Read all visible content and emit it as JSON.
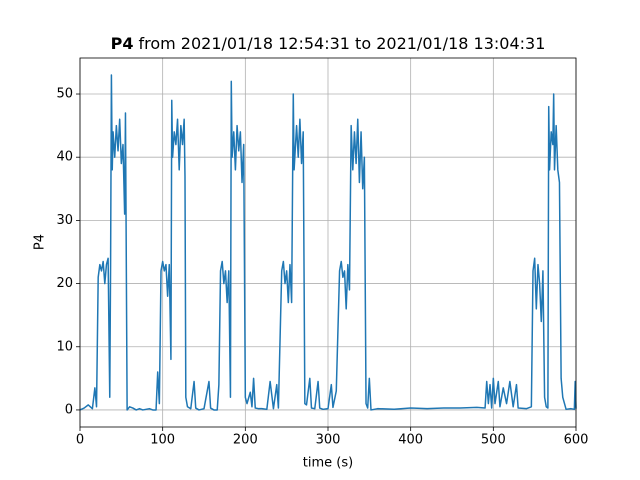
{
  "chart_data": {
    "type": "line",
    "title": {
      "bold": "P4",
      "rest": "from 2021/01/18 12:54:31 to 2021/01/18 13:04:31"
    },
    "x_label": "time (s)",
    "y_label": "P4",
    "xlim": [
      0,
      600
    ],
    "xticks": [
      0,
      100,
      200,
      300,
      400,
      500,
      600
    ],
    "ylim": [
      -2.7,
      55.7
    ],
    "yticks": [
      0,
      10,
      20,
      30,
      40,
      50
    ],
    "grid": true,
    "series": [
      {
        "name": "P4",
        "color": "#1f77b4",
        "x": [
          0,
          5,
          10,
          15,
          18,
          20,
          22,
          24,
          26,
          28,
          30,
          32,
          34,
          36,
          37,
          38,
          39,
          40,
          42,
          44,
          46,
          48,
          50,
          52,
          54,
          55,
          57,
          60,
          64,
          68,
          72,
          76,
          80,
          84,
          88,
          92,
          94,
          96,
          98,
          100,
          102,
          104,
          106,
          108,
          110,
          111,
          112,
          114,
          116,
          118,
          120,
          122,
          124,
          126,
          127,
          128,
          130,
          134,
          138,
          140,
          144,
          150,
          156,
          158,
          162,
          166,
          168,
          170,
          172,
          174,
          176,
          178,
          180,
          182,
          183,
          184,
          186,
          188,
          190,
          192,
          194,
          196,
          198,
          200,
          202,
          206,
          208,
          210,
          212,
          216,
          220,
          226,
          230,
          234,
          238,
          240,
          244,
          246,
          248,
          250,
          252,
          254,
          256,
          258,
          259,
          262,
          264,
          266,
          268,
          270,
          272,
          274,
          278,
          280,
          284,
          288,
          290,
          294,
          300,
          304,
          306,
          310,
          314,
          316,
          318,
          320,
          322,
          324,
          326,
          328,
          330,
          332,
          334,
          336,
          338,
          340,
          342,
          344,
          346,
          348,
          350,
          352,
          360,
          380,
          400,
          420,
          440,
          460,
          480,
          490,
          492,
          494,
          496,
          498,
          500,
          502,
          506,
          508,
          512,
          516,
          520,
          524,
          528,
          530,
          540,
          546,
          548,
          550,
          552,
          554,
          556,
          558,
          560,
          562,
          564,
          566,
          567,
          568,
          570,
          572,
          573,
          574,
          576,
          578,
          580,
          582,
          584,
          588,
          594,
          598,
          599,
          600
        ],
        "values": [
          0,
          0.3,
          0.8,
          0.2,
          3.5,
          0.5,
          21,
          23,
          22,
          23.5,
          20,
          23,
          24,
          2,
          23,
          53,
          38,
          44,
          40,
          45,
          41,
          46,
          39,
          42,
          31,
          47,
          0,
          0.5,
          0.3,
          0,
          0.2,
          0,
          0.1,
          0.2,
          0,
          0,
          6,
          1,
          22,
          23.5,
          22,
          23,
          18,
          23,
          8,
          49,
          40,
          44,
          42,
          46,
          38,
          45,
          42,
          46,
          37,
          2,
          0.5,
          0.2,
          4.5,
          0.3,
          0,
          0.2,
          4.5,
          0.3,
          0,
          0,
          4,
          22,
          23.5,
          20,
          22,
          17,
          22,
          2,
          52,
          40,
          44,
          38,
          45,
          41,
          44,
          36,
          42,
          2,
          1,
          2.8,
          0.5,
          5,
          0.3,
          0.2,
          0.2,
          0.1,
          4.5,
          0.2,
          4,
          0.3,
          22,
          23.5,
          20,
          22,
          17,
          23,
          17,
          50,
          38,
          45,
          40,
          46,
          39,
          44,
          1,
          0.8,
          5,
          0.3,
          0.2,
          4.5,
          0.3,
          0.1,
          0.2,
          4,
          0.4,
          3,
          22,
          23.5,
          21,
          22,
          16,
          23,
          19,
          45,
          38,
          44,
          39,
          46,
          36,
          44,
          35,
          40,
          1,
          0.3,
          5,
          0,
          0.2,
          0.1,
          0.3,
          0.2,
          0.3,
          0.3,
          0.4,
          0.3,
          4.5,
          1,
          4,
          0.3,
          5,
          1,
          4.5,
          0.5,
          3.5,
          1,
          4.5,
          0.5,
          4,
          0.3,
          0.2,
          0.5,
          22,
          24,
          16,
          23,
          20,
          14,
          22,
          2,
          0.5,
          0.3,
          48,
          38,
          44,
          42,
          50,
          38,
          45,
          38,
          36,
          5,
          2,
          0.1,
          0.2,
          0.1,
          4.5,
          0.2
        ]
      }
    ]
  }
}
